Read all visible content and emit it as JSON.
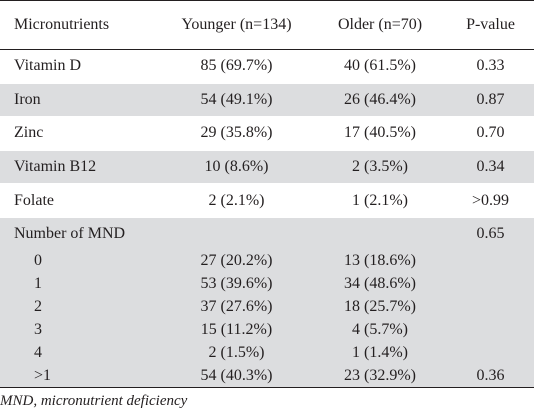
{
  "table": {
    "headers": [
      "Micronutrients",
      "Younger (n=134)",
      "Older (n=70)",
      "P-value"
    ],
    "rows": [
      [
        "Vitamin D",
        "85 (69.7%)",
        "40 (61.5%)",
        "0.33"
      ],
      [
        "Iron",
        "54 (49.1%)",
        "26 (46.4%)",
        "0.87"
      ],
      [
        "Zinc",
        "29 (35.8%)",
        "17 (40.5%)",
        "0.70"
      ],
      [
        "Vitamin B12",
        "10 (8.6%)",
        "2 (3.5%)",
        "0.34"
      ],
      [
        "Folate",
        "2 (2.1%)",
        "1 (2.1%)",
        ">0.99"
      ]
    ],
    "mnd_group": {
      "label": "Number of MND",
      "p_value": "0.65",
      "rows": [
        [
          "0",
          "27 (20.2%)",
          "13 (18.6%)",
          ""
        ],
        [
          "1",
          "53 (39.6%)",
          "34 (48.6%)",
          ""
        ],
        [
          "2",
          "37 (27.6%)",
          "18 (25.7%)",
          ""
        ],
        [
          "3",
          "15 (11.2%)",
          "4 (5.7%)",
          ""
        ],
        [
          "4",
          "2 (1.5%)",
          "1 (1.4%)",
          ""
        ],
        [
          ">1",
          "54 (40.3%)",
          "23 (32.9%)",
          "0.36"
        ]
      ]
    }
  },
  "footnote": "MND, micronutrient deficiency"
}
